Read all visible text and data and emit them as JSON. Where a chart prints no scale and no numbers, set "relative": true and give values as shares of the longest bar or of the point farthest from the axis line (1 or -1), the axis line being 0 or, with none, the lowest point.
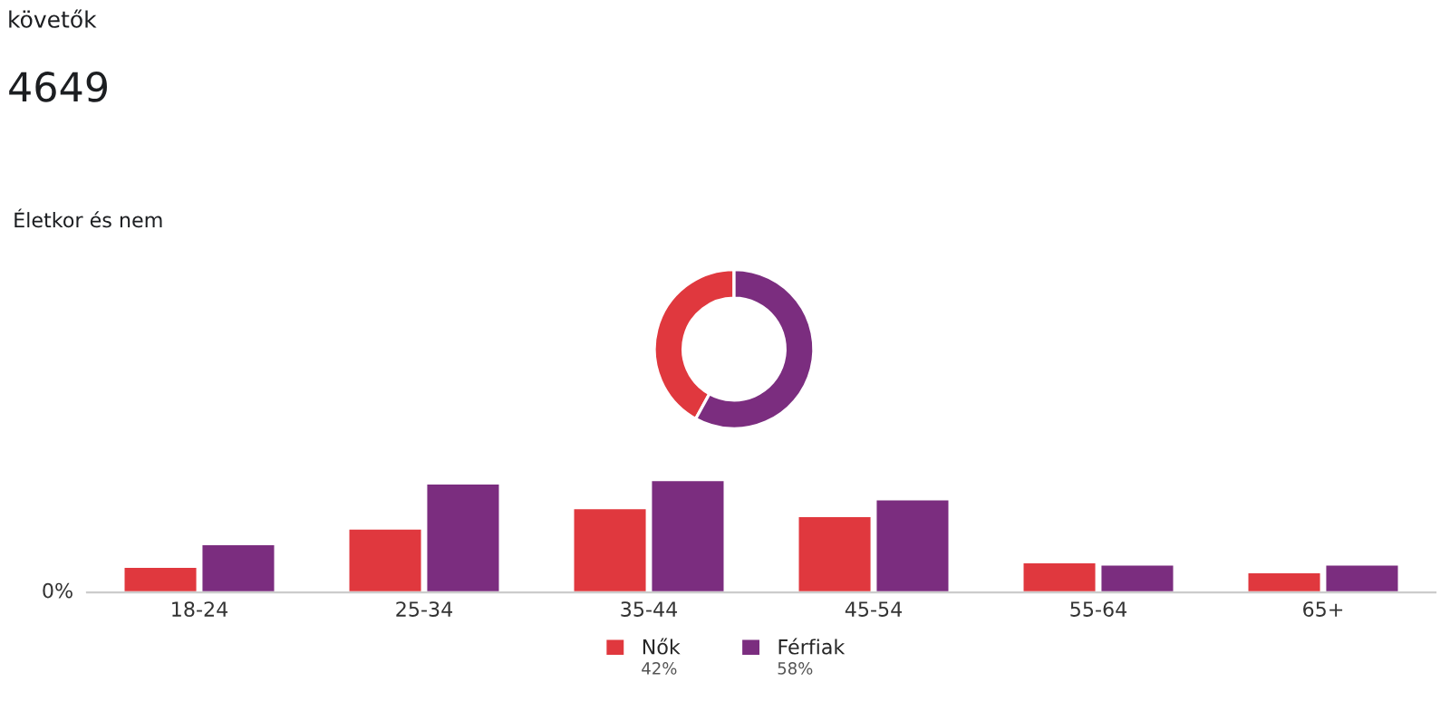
{
  "chart_data": [
    {
      "type": "other",
      "title": "követők",
      "annotations": [
        "4649"
      ]
    },
    {
      "type": "donut",
      "categories": [
        "Nők",
        "Férfiak"
      ],
      "values": [
        42,
        58
      ],
      "colors": [
        "#e0383e",
        "#7b2d7f"
      ],
      "value_labels": [
        "42%",
        "58%"
      ],
      "legend": "bottom"
    },
    {
      "type": "bar",
      "relative": true,
      "title": "Életkor és nem",
      "categories": [
        "18-24",
        "25-34",
        "35-44",
        "45-54",
        "55-64",
        "65+"
      ],
      "series": [
        {
          "color": "#e0383e",
          "values": [
            0.23,
            0.57,
            0.75,
            0.68,
            0.27,
            0.18
          ]
        },
        {
          "color": "#7b2d7f",
          "values": [
            0.43,
            0.97,
            1.0,
            0.83,
            0.25,
            0.25
          ]
        }
      ],
      "annotations": [
        "0%"
      ]
    }
  ]
}
